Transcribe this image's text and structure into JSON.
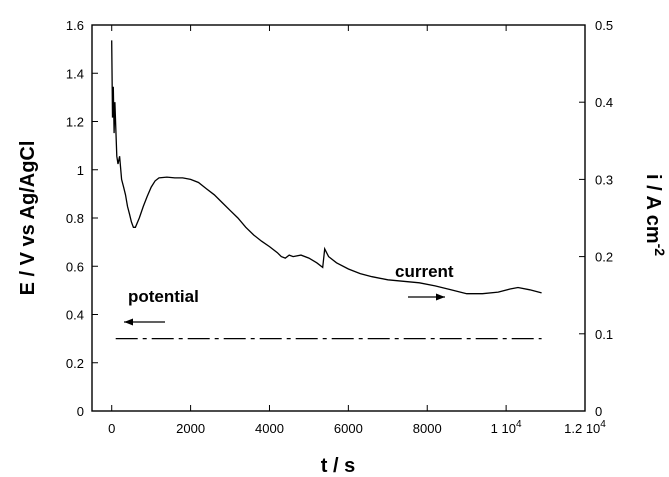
{
  "chart_data": {
    "type": "line",
    "xlabel": "t / s",
    "ylabel_left": "E / V vs Ag/AgCl",
    "ylabel_right": "i / A cm",
    "ylabel_right_exponent": "-2",
    "xlim": [
      -500,
      12000
    ],
    "ylim_left": [
      0,
      1.6
    ],
    "ylim_right": [
      0,
      0.5
    ],
    "x_ticks": [
      {
        "value": 0,
        "label": "0"
      },
      {
        "value": 2000,
        "label": "2000"
      },
      {
        "value": 4000,
        "label": "4000"
      },
      {
        "value": 6000,
        "label": "6000"
      },
      {
        "value": 8000,
        "label": "8000"
      },
      {
        "value": 10000,
        "label": "1 10",
        "exponent": "4"
      },
      {
        "value": 12000,
        "label": "1.2 10",
        "exponent": "4"
      }
    ],
    "y_left_ticks": [
      "0",
      "0.2",
      "0.4",
      "0.6",
      "0.8",
      "1",
      "1.2",
      "1.4",
      "1.6"
    ],
    "y_left_values": [
      0,
      0.2,
      0.4,
      0.6,
      0.8,
      1.0,
      1.2,
      1.4,
      1.6
    ],
    "y_right_ticks": [
      "0",
      "0.1",
      "0.2",
      "0.3",
      "0.4",
      "0.5"
    ],
    "y_right_values": [
      0,
      0.1,
      0.2,
      0.3,
      0.4,
      0.5
    ],
    "grid": false,
    "series": [
      {
        "name": "current",
        "axis": "right",
        "style": "solid",
        "points": [
          [
            0,
            0.48
          ],
          [
            20,
            0.38
          ],
          [
            40,
            0.42
          ],
          [
            60,
            0.36
          ],
          [
            80,
            0.4
          ],
          [
            100,
            0.37
          ],
          [
            130,
            0.33
          ],
          [
            160,
            0.32
          ],
          [
            200,
            0.33
          ],
          [
            250,
            0.3
          ],
          [
            300,
            0.29
          ],
          [
            350,
            0.28
          ],
          [
            400,
            0.265
          ],
          [
            450,
            0.255
          ],
          [
            500,
            0.245
          ],
          [
            550,
            0.238
          ],
          [
            600,
            0.238
          ],
          [
            700,
            0.25
          ],
          [
            800,
            0.265
          ],
          [
            900,
            0.278
          ],
          [
            1000,
            0.29
          ],
          [
            1100,
            0.298
          ],
          [
            1200,
            0.302
          ],
          [
            1400,
            0.303
          ],
          [
            1600,
            0.302
          ],
          [
            1800,
            0.302
          ],
          [
            2000,
            0.3
          ],
          [
            2200,
            0.296
          ],
          [
            2400,
            0.288
          ],
          [
            2600,
            0.28
          ],
          [
            2800,
            0.27
          ],
          [
            3000,
            0.26
          ],
          [
            3200,
            0.25
          ],
          [
            3400,
            0.238
          ],
          [
            3600,
            0.228
          ],
          [
            3800,
            0.22
          ],
          [
            4000,
            0.213
          ],
          [
            4200,
            0.205
          ],
          [
            4300,
            0.2
          ],
          [
            4400,
            0.198
          ],
          [
            4500,
            0.202
          ],
          [
            4600,
            0.2
          ],
          [
            4800,
            0.202
          ],
          [
            5000,
            0.198
          ],
          [
            5200,
            0.192
          ],
          [
            5350,
            0.186
          ],
          [
            5400,
            0.21
          ],
          [
            5500,
            0.2
          ],
          [
            5700,
            0.192
          ],
          [
            6000,
            0.184
          ],
          [
            6300,
            0.178
          ],
          [
            6600,
            0.174
          ],
          [
            7000,
            0.17
          ],
          [
            7400,
            0.168
          ],
          [
            7800,
            0.166
          ],
          [
            8200,
            0.162
          ],
          [
            8600,
            0.157
          ],
          [
            9000,
            0.152
          ],
          [
            9400,
            0.152
          ],
          [
            9800,
            0.154
          ],
          [
            10100,
            0.158
          ],
          [
            10300,
            0.16
          ],
          [
            10600,
            0.157
          ],
          [
            10900,
            0.153
          ]
        ]
      },
      {
        "name": "potential",
        "axis": "left",
        "style": "dashed",
        "points": [
          [
            100,
            0.3
          ],
          [
            10900,
            0.3
          ]
        ]
      }
    ],
    "annotations": [
      {
        "text": "current",
        "arrow": "right",
        "points_to": "right axis"
      },
      {
        "text": "potential",
        "arrow": "left",
        "points_to": "left axis"
      }
    ]
  }
}
